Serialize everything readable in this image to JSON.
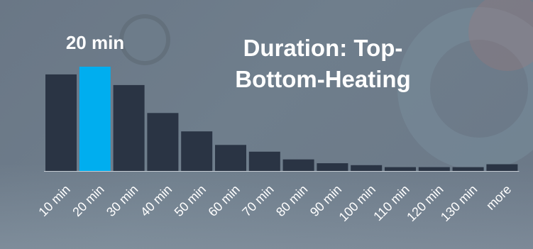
{
  "chart_data": {
    "type": "bar",
    "title": "Duration: Top-Bottom-Heating",
    "categories": [
      "10 min",
      "20 min",
      "30 min",
      "40 min",
      "50 min",
      "60 min",
      "70 min",
      "80 min",
      "90 min",
      "100 min",
      "110 min",
      "120 min",
      "130 min",
      "more"
    ],
    "values": [
      100,
      108,
      89,
      60,
      41,
      27,
      20,
      12,
      8,
      6,
      4,
      4,
      4,
      7
    ],
    "highlight_index": 1,
    "highlight_label": "20 min",
    "colors": {
      "bar": "#2a3444",
      "highlight": "#00aeef",
      "baseline": "#c5ccd3",
      "text": "#ffffff"
    },
    "xlabel": "",
    "ylabel": "",
    "ylim": [
      0,
      108
    ],
    "grid": false,
    "legend": "none"
  }
}
